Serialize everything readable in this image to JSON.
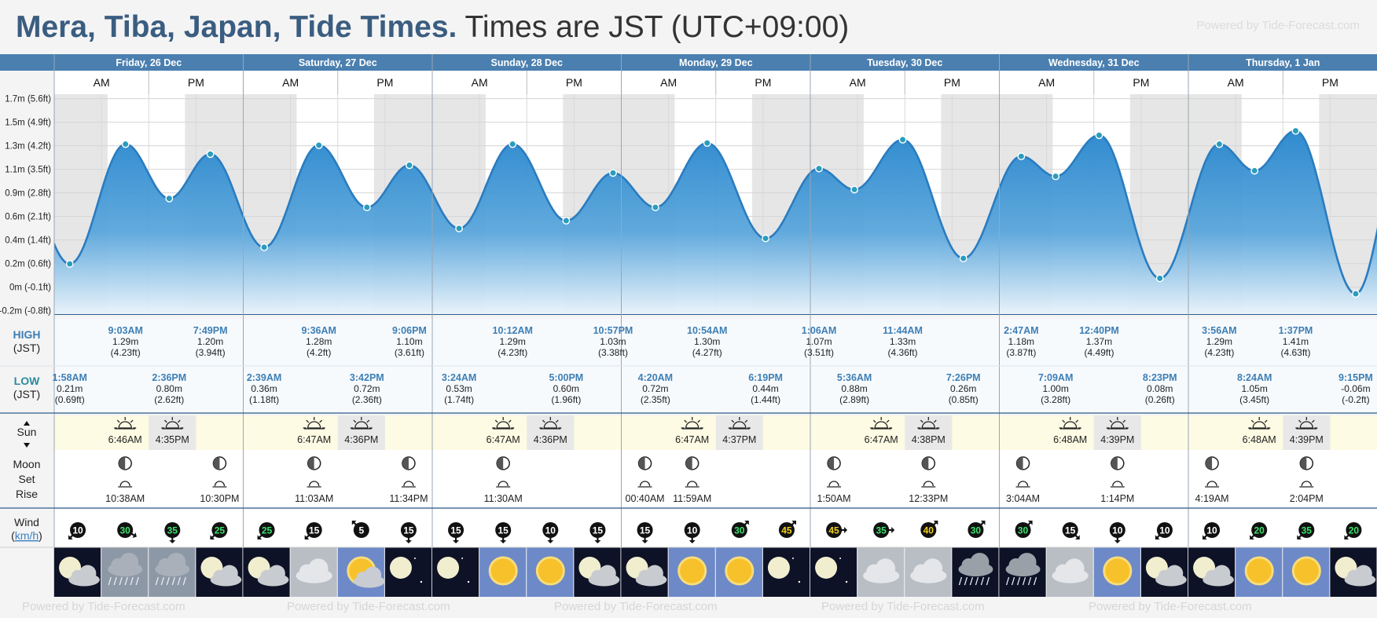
{
  "header": {
    "place": "Mera, Tiba, Japan, Tide Times.",
    "timezone": "Times are JST (UTC+09:00)",
    "powered": "Powered by Tide-Forecast.com"
  },
  "footer": {
    "watermark": "Powered by Tide-Forecast.com"
  },
  "colors": {
    "header_band": "#4a7fb0",
    "tide_fill": "#2d8fd0",
    "tide_line": "#2a7cc0",
    "night": "#e5e5e5",
    "sun_row": "#fdfbe3"
  },
  "row_labels": {
    "high": "HIGH",
    "high_sub": "(JST)",
    "low": "LOW",
    "low_sub": "(JST)",
    "sun": "Sun",
    "moon": [
      "Moon",
      "Set",
      "Rise"
    ],
    "wind": "Wind",
    "wind_unit": "km/h"
  },
  "ampm": [
    "AM",
    "PM"
  ],
  "days": [
    {
      "label": "Friday, 26 Dec",
      "sunrise": "6:46AM",
      "sunset": "4:35PM",
      "moon": "10:38AM",
      "moon2": "10:30PM"
    },
    {
      "label": "Saturday, 27 Dec",
      "sunrise": "6:47AM",
      "sunset": "4:36PM",
      "moon": "11:03AM",
      "moon2": "11:34PM"
    },
    {
      "label": "Sunday, 28 Dec",
      "sunrise": "6:47AM",
      "sunset": "4:36PM",
      "moon": "11:30AM",
      "moon2": ""
    },
    {
      "label": "Monday, 29 Dec",
      "sunrise": "6:47AM",
      "sunset": "4:37PM",
      "moon": "00:40AM",
      "moon2": "11:59AM"
    },
    {
      "label": "Tuesday, 30 Dec",
      "sunrise": "6:47AM",
      "sunset": "4:38PM",
      "moon": "1:50AM",
      "moon2": "12:33PM"
    },
    {
      "label": "Wednesday, 31 Dec",
      "sunrise": "6:48AM",
      "sunset": "4:39PM",
      "moon": "3:04AM",
      "moon2": "1:14PM"
    },
    {
      "label": "Thursday, 1 Jan",
      "sunrise": "6:48AM",
      "sunset": "4:39PM",
      "moon": "4:19AM",
      "moon2": "2:04PM"
    }
  ],
  "chart_data": {
    "type": "area",
    "title": "",
    "y_ticks": [
      "1.7m (5.6ft)",
      "1.5m (4.9ft)",
      "1.3m (4.2ft)",
      "1.1m (3.5ft)",
      "0.9m (2.8ft)",
      "0.6m (2.1ft)",
      "0.4m (1.4ft)",
      "0.2m (0.6ft)",
      "0m (-0.1ft)",
      "-0.2m (-0.8ft)"
    ],
    "ylim": [
      -0.25,
      1.75
    ],
    "x_unit": "hours from Friday 26 Dec 00:00 JST",
    "series": [
      {
        "tides": [
          {
            "t": 1.97,
            "h": 0.21,
            "type": "low",
            "time": "1:58AM",
            "m": "0.21m",
            "ft": "(0.69ft)"
          },
          {
            "t": 9.05,
            "h": 1.29,
            "type": "high",
            "time": "9:03AM",
            "m": "1.29m",
            "ft": "(4.23ft)"
          },
          {
            "t": 14.6,
            "h": 0.8,
            "type": "low",
            "time": "2:36PM",
            "m": "0.80m",
            "ft": "(2.62ft)"
          },
          {
            "t": 19.82,
            "h": 1.2,
            "type": "high",
            "time": "7:49PM",
            "m": "1.20m",
            "ft": "(3.94ft)"
          },
          {
            "t": 26.65,
            "h": 0.36,
            "type": "low",
            "time": "2:39AM",
            "m": "0.36m",
            "ft": "(1.18ft)"
          },
          {
            "t": 33.6,
            "h": 1.28,
            "type": "high",
            "time": "9:36AM",
            "m": "1.28m",
            "ft": "(4.2ft)"
          },
          {
            "t": 39.7,
            "h": 0.72,
            "type": "low",
            "time": "3:42PM",
            "m": "0.72m",
            "ft": "(2.36ft)"
          },
          {
            "t": 45.1,
            "h": 1.1,
            "type": "high",
            "time": "9:06PM",
            "m": "1.10m",
            "ft": "(3.61ft)"
          },
          {
            "t": 51.4,
            "h": 0.53,
            "type": "low",
            "time": "3:24AM",
            "m": "0.53m",
            "ft": "(1.74ft)"
          },
          {
            "t": 58.2,
            "h": 1.29,
            "type": "high",
            "time": "10:12AM",
            "m": "1.29m",
            "ft": "(4.23ft)"
          },
          {
            "t": 65.0,
            "h": 0.6,
            "type": "low",
            "time": "5:00PM",
            "m": "0.60m",
            "ft": "(1.96ft)"
          },
          {
            "t": 70.95,
            "h": 1.03,
            "type": "high",
            "time": "10:57PM",
            "m": "1.03m",
            "ft": "(3.38ft)"
          },
          {
            "t": 76.33,
            "h": 0.72,
            "type": "low",
            "time": "4:20AM",
            "m": "0.72m",
            "ft": "(2.35ft)"
          },
          {
            "t": 82.9,
            "h": 1.3,
            "type": "high",
            "time": "10:54AM",
            "m": "1.30m",
            "ft": "(4.27ft)"
          },
          {
            "t": 90.32,
            "h": 0.44,
            "type": "low",
            "time": "6:19PM",
            "m": "0.44m",
            "ft": "(1.44ft)"
          },
          {
            "t": 97.1,
            "h": 1.07,
            "type": "high",
            "time": "1:06AM",
            "m": "1.07m",
            "ft": "(3.51ft)"
          },
          {
            "t": 101.6,
            "h": 0.88,
            "type": "low",
            "time": "5:36AM",
            "m": "0.88m",
            "ft": "(2.89ft)"
          },
          {
            "t": 107.73,
            "h": 1.33,
            "type": "high",
            "time": "11:44AM",
            "m": "1.33m",
            "ft": "(4.36ft)"
          },
          {
            "t": 115.43,
            "h": 0.26,
            "type": "low",
            "time": "7:26PM",
            "m": "0.26m",
            "ft": "(0.85ft)"
          },
          {
            "t": 122.78,
            "h": 1.18,
            "type": "high",
            "time": "2:47AM",
            "m": "1.18m",
            "ft": "(3.87ft)"
          },
          {
            "t": 127.15,
            "h": 1.0,
            "type": "low",
            "time": "7:09AM",
            "m": "1.00m",
            "ft": "(3.28ft)"
          },
          {
            "t": 132.67,
            "h": 1.37,
            "type": "high",
            "time": "12:40PM",
            "m": "1.37m",
            "ft": "(4.49ft)"
          },
          {
            "t": 140.38,
            "h": 0.08,
            "type": "low",
            "time": "8:23PM",
            "m": "0.08m",
            "ft": "(0.26ft)"
          },
          {
            "t": 147.93,
            "h": 1.29,
            "type": "high",
            "time": "3:56AM",
            "m": "1.29m",
            "ft": "(4.23ft)"
          },
          {
            "t": 152.4,
            "h": 1.05,
            "type": "low",
            "time": "8:24AM",
            "m": "1.05m",
            "ft": "(3.45ft)"
          },
          {
            "t": 157.62,
            "h": 1.41,
            "type": "high",
            "time": "1:37PM",
            "m": "1.41m",
            "ft": "(4.63ft)"
          },
          {
            "t": 165.25,
            "h": -0.06,
            "type": "low",
            "time": "9:15PM",
            "m": "-0.06m",
            "ft": "(-0.2ft)"
          }
        ]
      }
    ],
    "grid": true,
    "legend": "none"
  },
  "wind": [
    {
      "speed": "10",
      "dir": 225
    },
    {
      "speed": "30",
      "dir": 120
    },
    {
      "speed": "35",
      "dir": 180
    },
    {
      "speed": "25",
      "dir": 225
    },
    {
      "speed": "25",
      "dir": 225
    },
    {
      "speed": "15",
      "dir": 225
    },
    {
      "speed": "5",
      "dir": 315
    },
    {
      "speed": "15",
      "dir": 180
    },
    {
      "speed": "15",
      "dir": 180
    },
    {
      "speed": "15",
      "dir": 180
    },
    {
      "speed": "10",
      "dir": 180
    },
    {
      "speed": "15",
      "dir": 180
    },
    {
      "speed": "15",
      "dir": 180
    },
    {
      "speed": "10",
      "dir": 180
    },
    {
      "speed": "30",
      "dir": 45
    },
    {
      "speed": "45",
      "dir": 45
    },
    {
      "speed": "45",
      "dir": 90
    },
    {
      "speed": "35",
      "dir": 90
    },
    {
      "speed": "40",
      "dir": 45
    },
    {
      "speed": "30",
      "dir": 45
    },
    {
      "speed": "30",
      "dir": 45
    },
    {
      "speed": "15",
      "dir": 135
    },
    {
      "speed": "10",
      "dir": 180
    },
    {
      "speed": "10",
      "dir": 225
    },
    {
      "speed": "10",
      "dir": 225
    },
    {
      "speed": "20",
      "dir": 225
    },
    {
      "speed": "35",
      "dir": 225
    },
    {
      "speed": "20",
      "dir": 225
    }
  ],
  "weather": [
    {
      "icon": "moon-cloud-icon",
      "night": true
    },
    {
      "icon": "rain-cloud-icon",
      "night": false
    },
    {
      "icon": "rain-cloud-icon",
      "night": false
    },
    {
      "icon": "moon-cloud-icon",
      "night": true
    },
    {
      "icon": "moon-cloud-icon",
      "night": true
    },
    {
      "icon": "cloud-icon",
      "night": false
    },
    {
      "icon": "sun-cloud-icon",
      "night": false
    },
    {
      "icon": "moon-icon",
      "night": true
    },
    {
      "icon": "moon-icon",
      "night": true
    },
    {
      "icon": "sun-icon",
      "night": false
    },
    {
      "icon": "sun-icon",
      "night": false
    },
    {
      "icon": "moon-cloud-icon",
      "night": true
    },
    {
      "icon": "moon-cloud-icon",
      "night": true
    },
    {
      "icon": "sun-icon",
      "night": false
    },
    {
      "icon": "sun-icon",
      "night": false
    },
    {
      "icon": "moon-icon",
      "night": true
    },
    {
      "icon": "moon-icon",
      "night": true
    },
    {
      "icon": "cloud-icon",
      "night": false
    },
    {
      "icon": "cloud-icon",
      "night": false
    },
    {
      "icon": "rain-night-icon",
      "night": true
    },
    {
      "icon": "rain-night-icon",
      "night": true
    },
    {
      "icon": "cloud-icon",
      "night": false
    },
    {
      "icon": "sun-icon",
      "night": false
    },
    {
      "icon": "moon-cloud-icon",
      "night": true
    },
    {
      "icon": "moon-cloud-icon",
      "night": true
    },
    {
      "icon": "sun-icon",
      "night": false
    },
    {
      "icon": "sun-icon",
      "night": false
    },
    {
      "icon": "moon-cloud-icon",
      "night": true
    }
  ]
}
